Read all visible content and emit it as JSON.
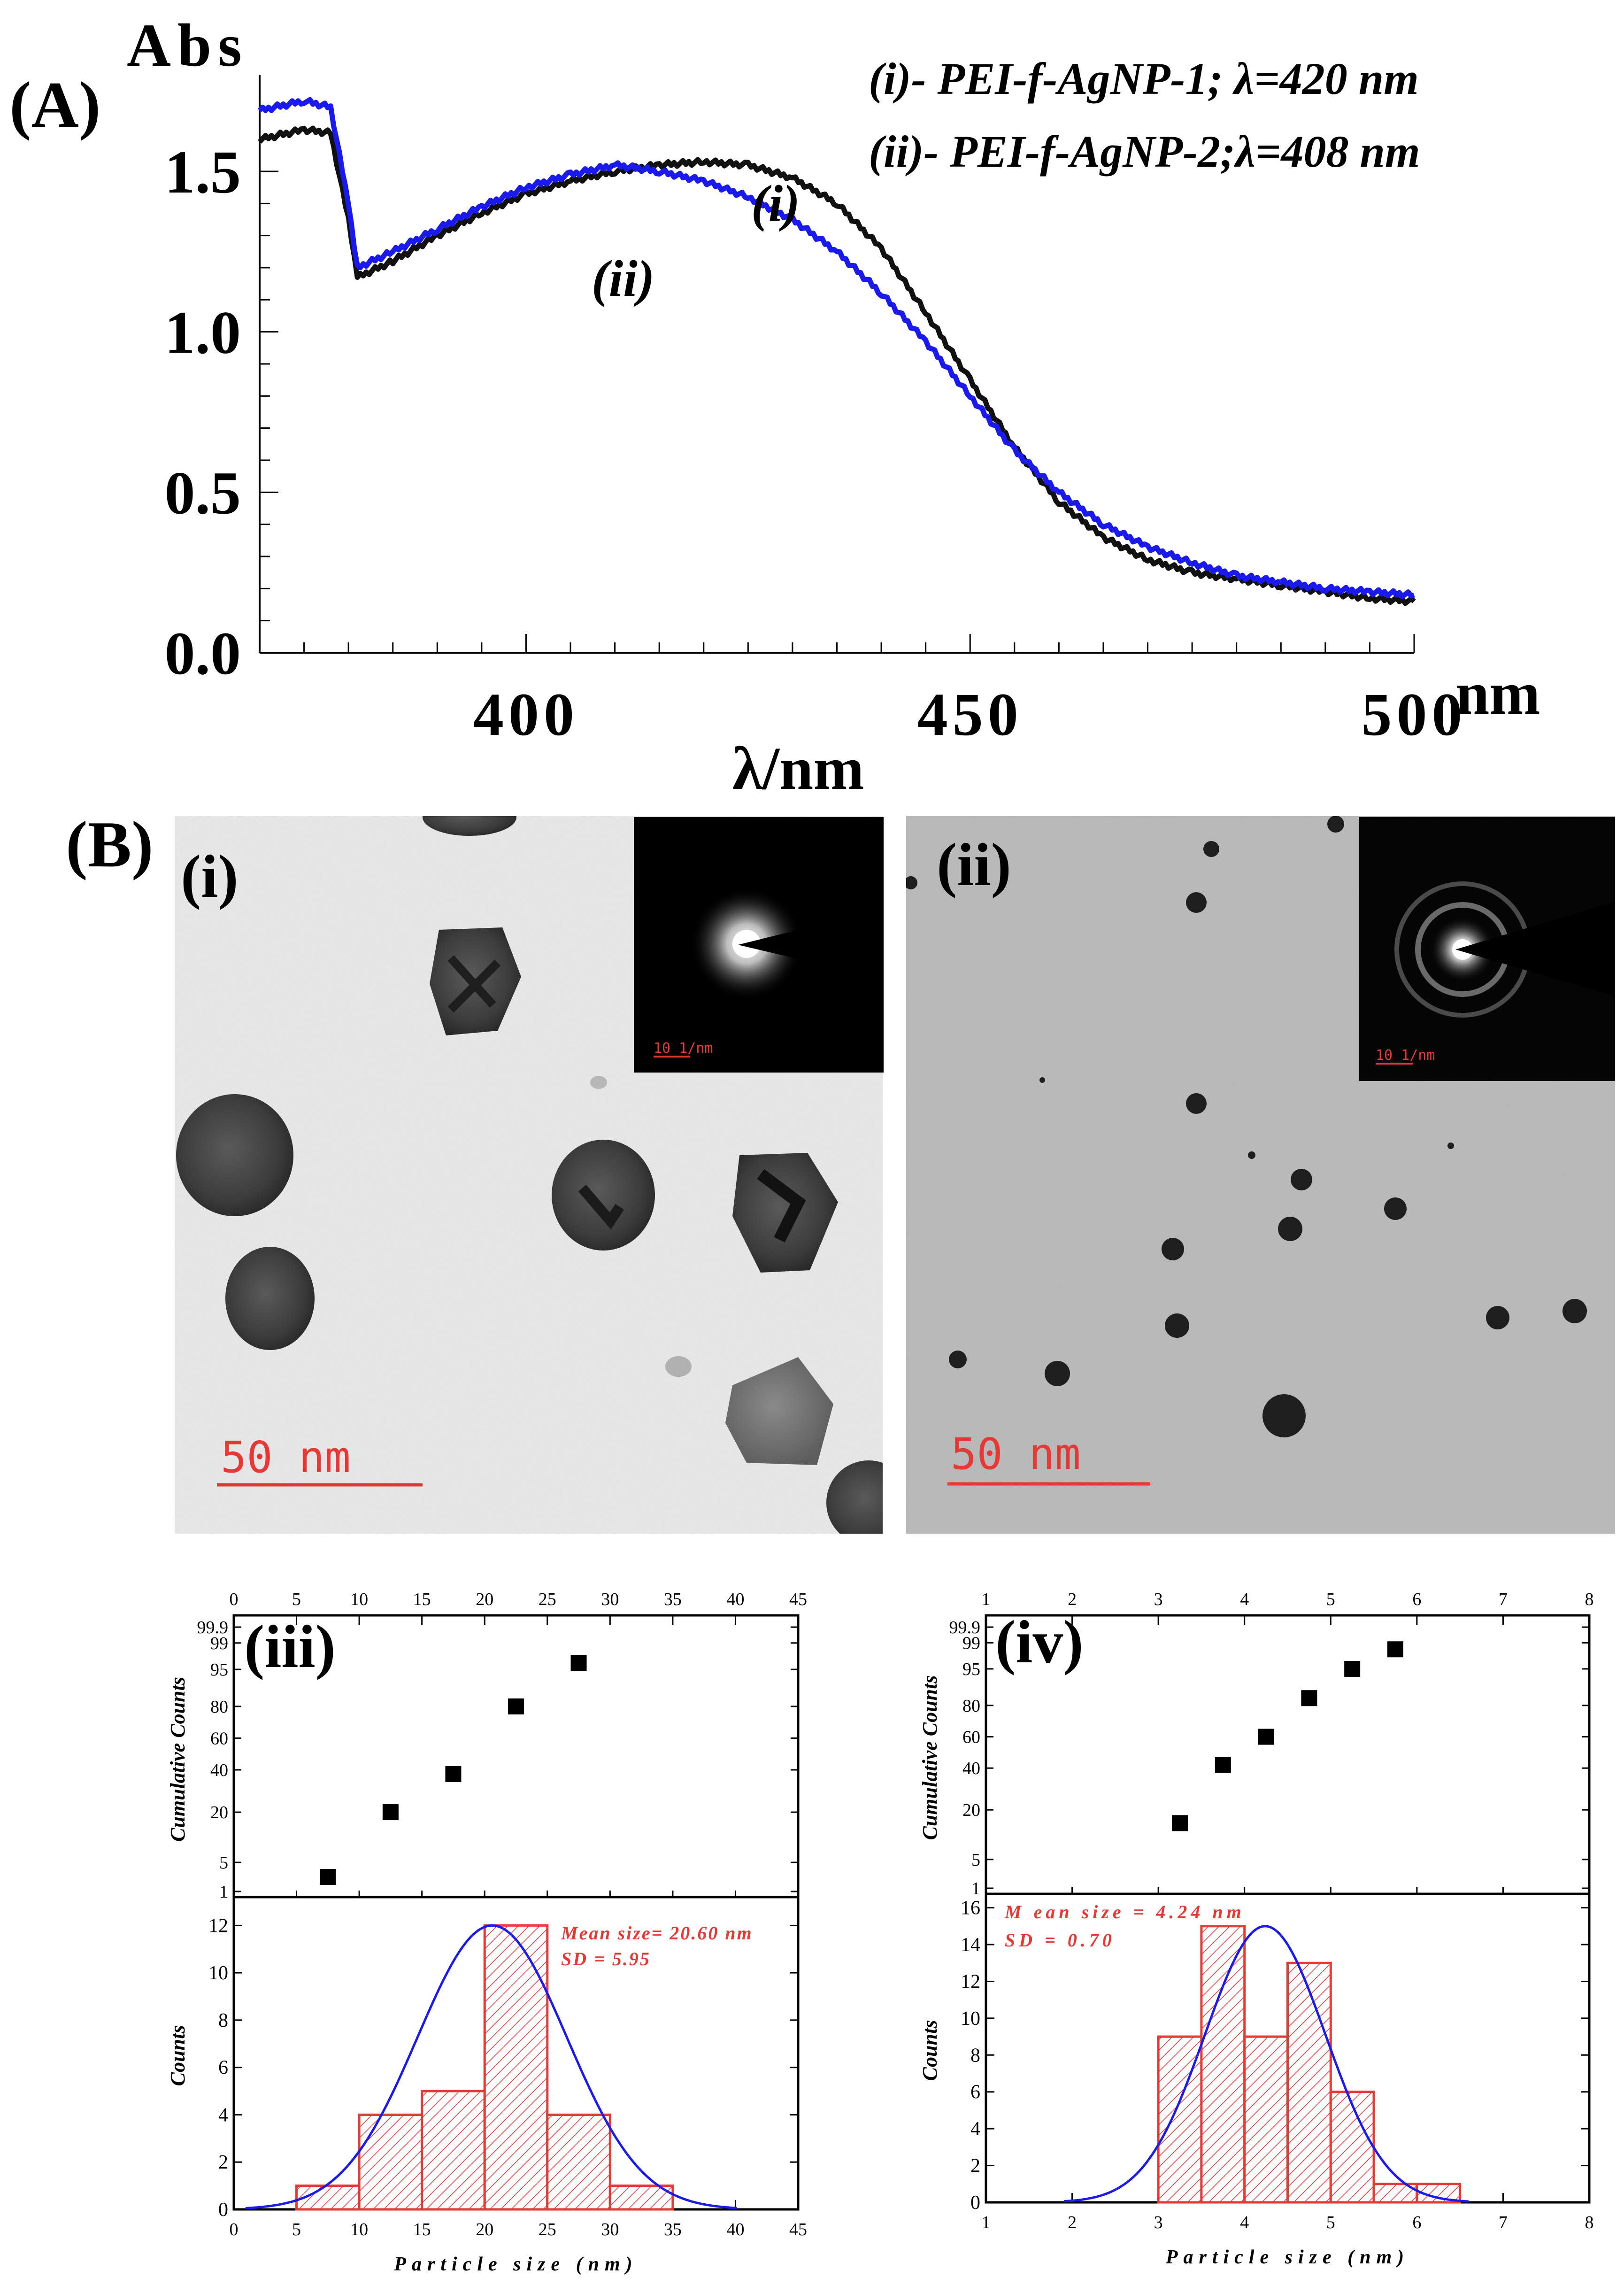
{
  "panel_labels": {
    "A": "(A)",
    "B": "(B)",
    "i": "(i)",
    "ii": "(ii)",
    "iii": "(iii)",
    "iv": "(iv)"
  },
  "micrographs": {
    "scale_bar_label": "50 nm",
    "saed_scale_label": "10 1/nm"
  },
  "chart_data": [
    {
      "id": "uvvis",
      "type": "line",
      "xlabel": "λ/nm",
      "xunit": "nm",
      "ylabel": "Abs",
      "xlim": [
        370,
        500
      ],
      "ylim": [
        0.0,
        1.8
      ],
      "xticks": [
        400,
        450,
        500
      ],
      "yticks": [
        "0.0",
        "0.5",
        "1.0",
        "1.5"
      ],
      "legend": [
        "(i)- PEI-f-AgNP-1; λ=420 nm",
        "(ii)- PEI-f-AgNP-2;λ=408 nm"
      ],
      "annotations": [
        "(i)",
        "(ii)"
      ],
      "series": [
        {
          "name": "PEI-f-AgNP-1",
          "color": "#111111",
          "x": [
            370,
            375,
            378,
            380,
            381,
            385,
            390,
            395,
            400,
            405,
            410,
            415,
            420,
            425,
            430,
            435,
            440,
            445,
            450,
            455,
            460,
            465,
            470,
            475,
            480,
            485,
            490,
            495,
            500
          ],
          "y": [
            1.6,
            1.63,
            1.62,
            1.35,
            1.17,
            1.22,
            1.3,
            1.37,
            1.43,
            1.47,
            1.5,
            1.52,
            1.53,
            1.52,
            1.48,
            1.4,
            1.26,
            1.06,
            0.85,
            0.64,
            0.47,
            0.36,
            0.29,
            0.25,
            0.23,
            0.21,
            0.19,
            0.17,
            0.16
          ]
        },
        {
          "name": "PEI-f-AgNP-2",
          "color": "#1a1aee",
          "x": [
            370,
            375,
            378,
            380,
            381,
            385,
            390,
            395,
            400,
            405,
            410,
            415,
            420,
            425,
            430,
            435,
            440,
            445,
            450,
            455,
            460,
            465,
            470,
            475,
            480,
            485,
            490,
            495,
            500
          ],
          "y": [
            1.69,
            1.72,
            1.7,
            1.4,
            1.2,
            1.25,
            1.32,
            1.39,
            1.45,
            1.49,
            1.52,
            1.5,
            1.47,
            1.42,
            1.35,
            1.25,
            1.12,
            0.97,
            0.8,
            0.63,
            0.5,
            0.4,
            0.33,
            0.28,
            0.24,
            0.22,
            0.2,
            0.19,
            0.18
          ]
        }
      ]
    },
    {
      "id": "cum1",
      "type": "scatter",
      "ylabel": "Cumulative Counts",
      "xlim": [
        0,
        45
      ],
      "xticks": [
        0,
        5,
        10,
        15,
        20,
        25,
        30,
        35,
        40,
        45
      ],
      "yticks": [
        "1",
        "5",
        "20",
        "40",
        "60",
        "80",
        "95",
        "99",
        "99.9"
      ],
      "x": [
        7.5,
        12.5,
        17.5,
        22.5,
        27.5
      ],
      "y": [
        3,
        20,
        38,
        80,
        96
      ]
    },
    {
      "id": "hist1",
      "type": "bar",
      "xlabel": "Particle size (nm)",
      "ylabel": "Counts",
      "xlim": [
        0,
        45
      ],
      "ylim": [
        0,
        13
      ],
      "xticks": [
        0,
        5,
        10,
        15,
        20,
        25,
        30,
        35,
        40,
        45
      ],
      "yticks": [
        0,
        2,
        4,
        6,
        8,
        10,
        12
      ],
      "bin_width": 5,
      "bin_starts": [
        5,
        10,
        15,
        20,
        25,
        30
      ],
      "values": [
        1,
        4,
        5,
        12,
        4,
        1
      ],
      "fit": {
        "mean": 20.6,
        "sd": 5.95,
        "peak": 12
      },
      "annotation": [
        "Mean size= 20.60 nm",
        "SD = 5.95"
      ]
    },
    {
      "id": "cum2",
      "type": "scatter",
      "ylabel": "Cumulative Counts",
      "xlim": [
        1,
        8
      ],
      "xticks": [
        1,
        2,
        3,
        4,
        5,
        6,
        7,
        8
      ],
      "yticks": [
        "1",
        "5",
        "20",
        "40",
        "60",
        "80",
        "95",
        "99",
        "99.9"
      ],
      "x": [
        3.25,
        3.75,
        4.25,
        4.75,
        5.25,
        5.75
      ],
      "y": [
        16,
        42,
        60,
        83,
        95,
        98
      ]
    },
    {
      "id": "hist2",
      "type": "bar",
      "xlabel": "Particle size (nm)",
      "ylabel": "Counts",
      "xlim": [
        1,
        8
      ],
      "ylim": [
        0,
        16.5
      ],
      "xticks": [
        1,
        2,
        3,
        4,
        5,
        6,
        7,
        8
      ],
      "yticks": [
        0,
        2,
        4,
        6,
        8,
        10,
        12,
        14,
        16
      ],
      "bin_width": 0.5,
      "bin_starts": [
        3,
        3.5,
        4,
        4.5,
        5,
        5.5,
        6
      ],
      "values": [
        9,
        15,
        9,
        13,
        6,
        1,
        1
      ],
      "fit": {
        "mean": 4.24,
        "sd": 0.7,
        "peak": 15
      },
      "annotation": [
        "M ean size = 4.24 nm",
        "SD = 0.70"
      ]
    }
  ]
}
